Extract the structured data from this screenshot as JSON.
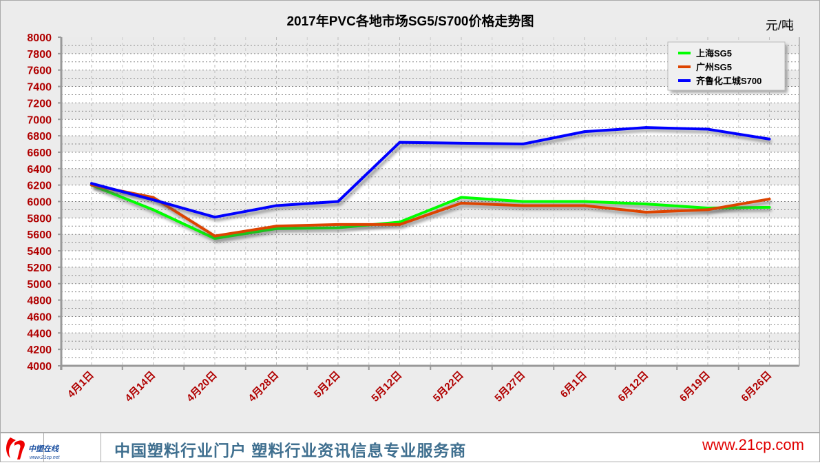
{
  "chart_data": {
    "type": "line",
    "title": "2017年PVC各地市场SG5/S700价格走势图",
    "unit": "元/吨",
    "categories": [
      "4月1日",
      "4月14日",
      "4月20日",
      "4月28日",
      "5月2日",
      "5月12日",
      "5月22日",
      "5月27日",
      "6月1日",
      "6月12日",
      "6月19日",
      "6月26日"
    ],
    "ylim": [
      4000,
      8000
    ],
    "ytick_step": 200,
    "grid": true,
    "legend_position": "top-right",
    "series": [
      {
        "name": "上海SG5",
        "color": "#00ff00",
        "values": [
          6200,
          5900,
          5550,
          5670,
          5680,
          5750,
          6050,
          6000,
          6000,
          5970,
          5920,
          5930
        ]
      },
      {
        "name": "广州SG5",
        "color": "#dd4400",
        "values": [
          6200,
          6050,
          5580,
          5700,
          5720,
          5720,
          5980,
          5950,
          5950,
          5870,
          5900,
          6030
        ]
      },
      {
        "name": "齐鲁化工城S700",
        "color": "#0000ff",
        "values": [
          6220,
          6020,
          5810,
          5950,
          6000,
          6720,
          6710,
          6700,
          6850,
          6900,
          6880,
          6760
        ]
      }
    ]
  },
  "footer": {
    "logo_text": "中塑在线",
    "logo_sub": "www.21cp.net",
    "slogan": "中国塑料行业门户 塑料行业资讯信息专业服务商",
    "url": "www.21cp.com"
  }
}
